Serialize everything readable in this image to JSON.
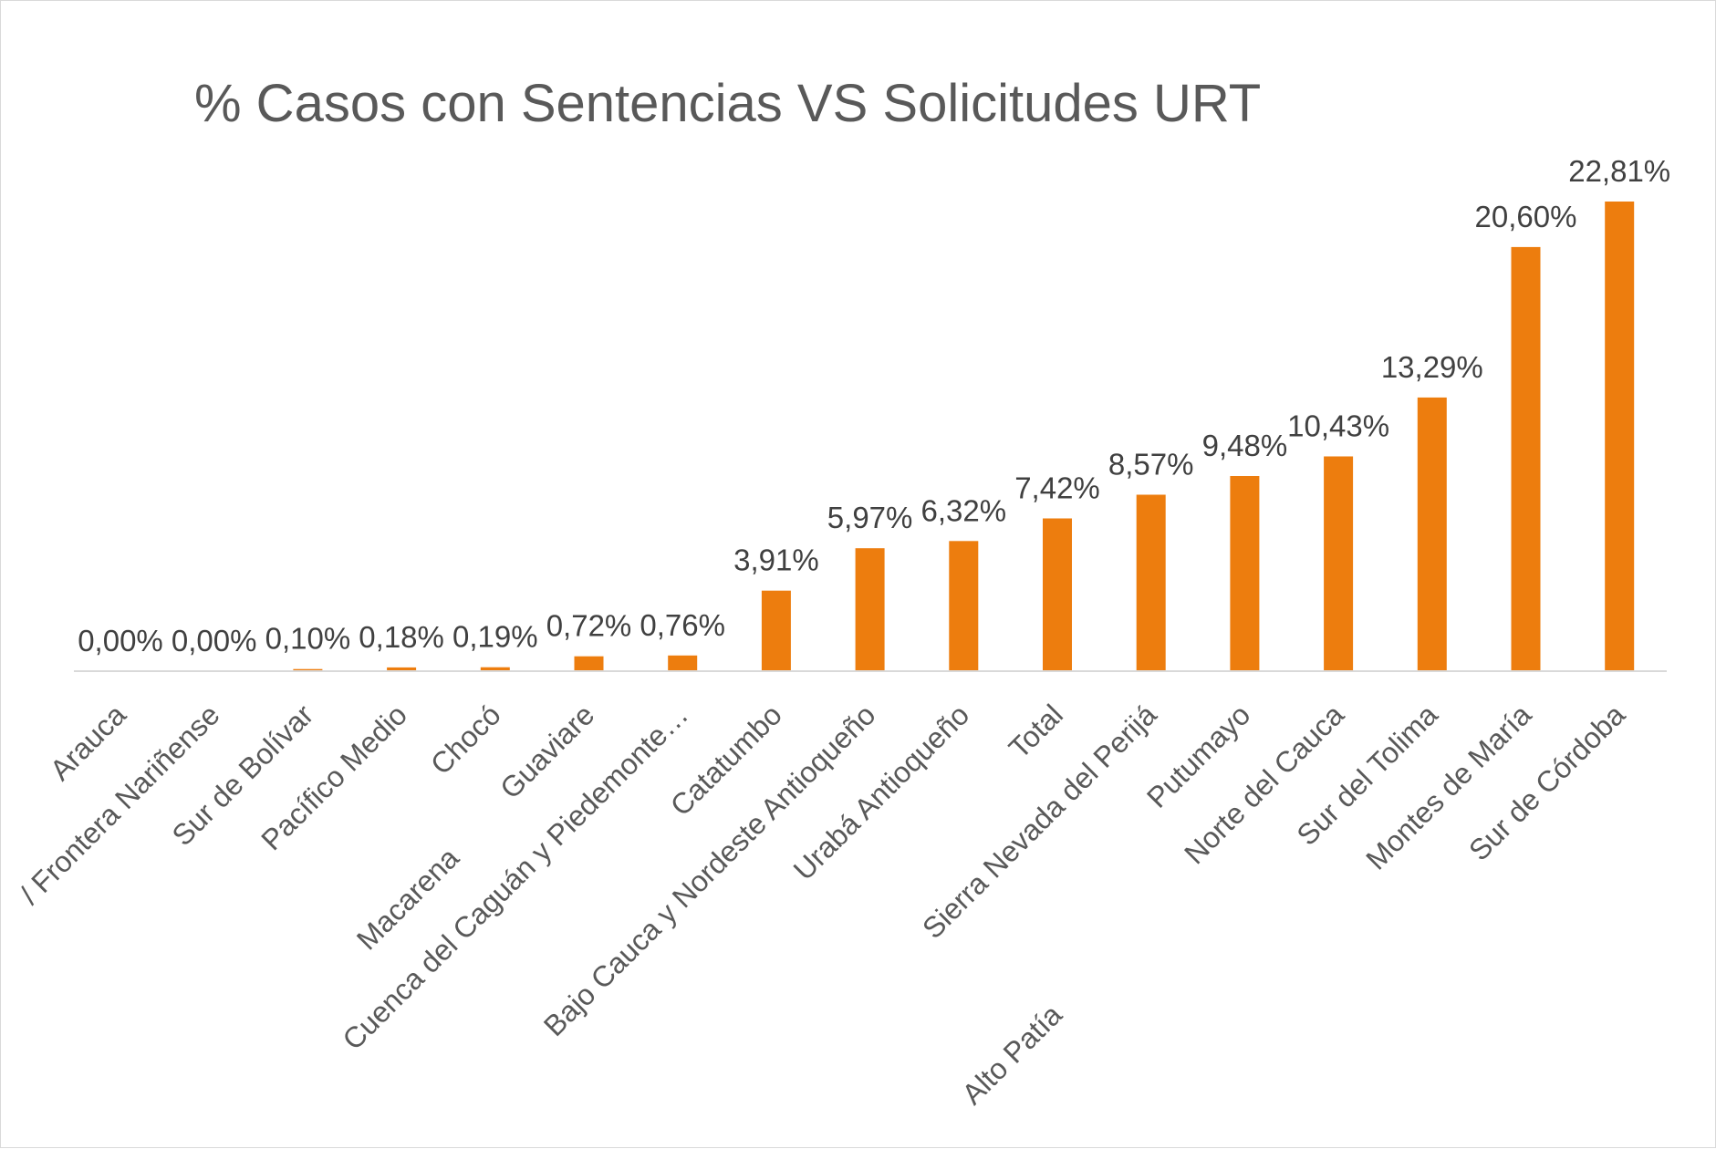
{
  "chart_data": {
    "type": "bar",
    "title": "%  Casos con Sentencias VS Solicitudes URT",
    "xlabel": "",
    "ylabel": "",
    "ylim": [
      0,
      25
    ],
    "grid": false,
    "legend": "none",
    "bar_color": "#ed7d0e",
    "axis_color": "#d9d9d9",
    "categories": [
      "Arauca",
      "Frontera Nariñense",
      "Sur de Bolívar",
      "Pacífico Medio",
      "Chocó",
      "Guaviare",
      "Cuenca del Caguán y Piedemonte…",
      "Catatumbo",
      "Bajo Cauca y Nordeste Antioqueño",
      "Urabá Antioqueño",
      "Total",
      "Sierra Nevada del Perijá",
      "Putumayo",
      "Norte del Cauca",
      "Sur del Tolima",
      "Montes de María",
      "Sur de Córdoba"
    ],
    "tick_labels_shown": [
      "Arauca",
      "/ Frontera Nariñense",
      "Sur de Bolívar",
      "Pacífico Medio",
      "Chocó",
      "Guaviare",
      "Cuenca del Caguán y Piedemonte…",
      "Catatumbo",
      "Bajo Cauca y Nordeste Antioqueño",
      "Urabá Antioqueño",
      "Total",
      "Sierra Nevada del Perijá",
      "Putumayo",
      "Norte del Cauca",
      "Sur del Tolima",
      "Montes de María",
      "Sur de Córdoba"
    ],
    "values": [
      0.0,
      0.0,
      0.1,
      0.18,
      0.19,
      0.72,
      0.76,
      3.91,
      5.97,
      6.32,
      7.42,
      8.57,
      9.48,
      10.43,
      13.29,
      20.6,
      22.81
    ],
    "data_labels": [
      "0,00%",
      "0,00%",
      "0,10%",
      "0,18%",
      "0,19%",
      "0,72%",
      "0,76%",
      "3,91%",
      "5,97%",
      "6,32%",
      "7,42%",
      "8,57%",
      "9,48%",
      "10,43%",
      "13,29%",
      "20,60%",
      "22,81%"
    ],
    "extra_labels": [
      "Macarena",
      "Alto Patía"
    ]
  }
}
